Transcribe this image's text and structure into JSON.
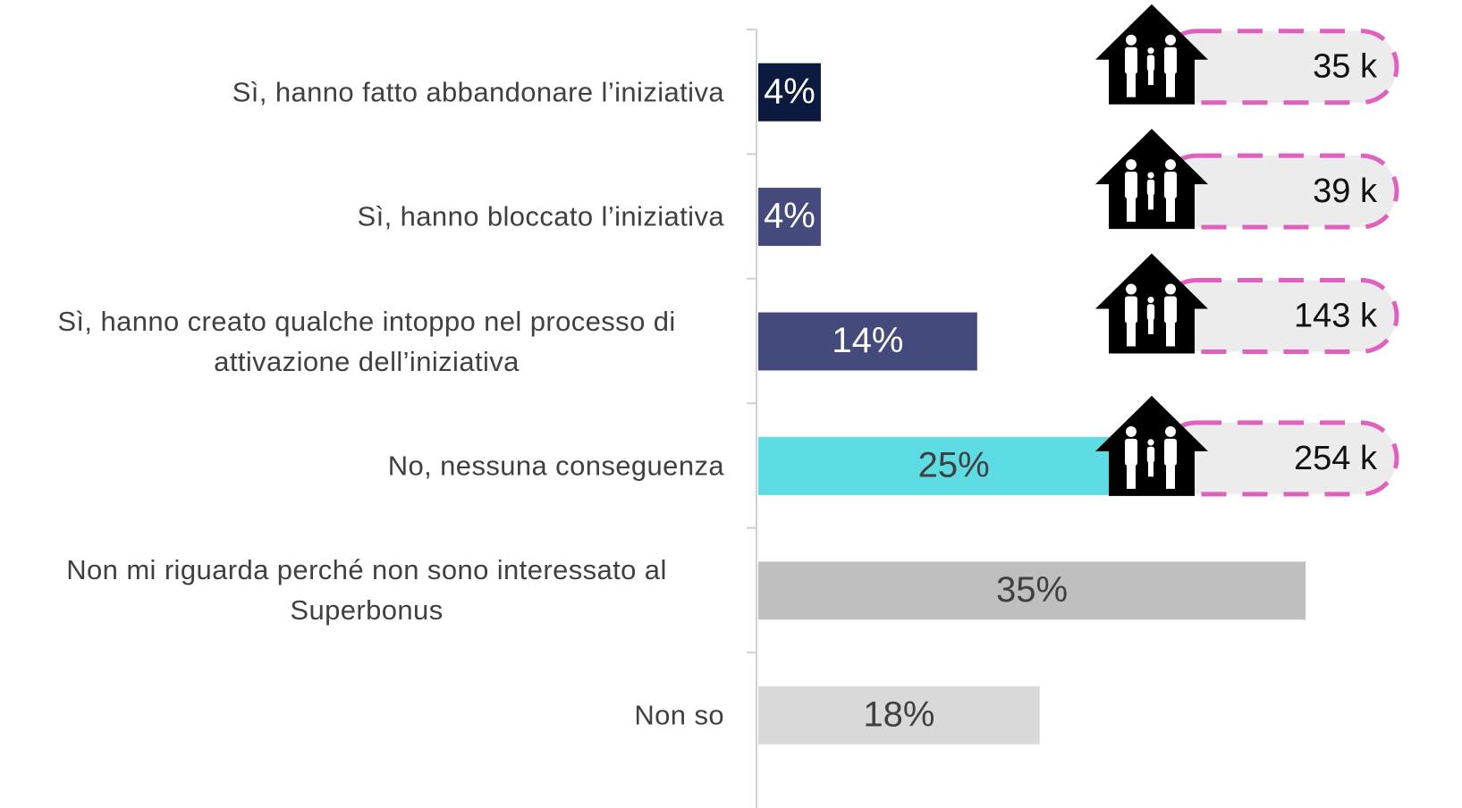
{
  "chart_data": {
    "type": "bar",
    "orientation": "horizontal",
    "categories": [
      "Sì, hanno fatto abbandonare l’iniziativa",
      "Sì, hanno bloccato l’iniziativa",
      "Sì, hanno creato qualche intoppo nel processo di attivazione dell’iniziativa",
      "No, nessuna conseguenza",
      "Non mi riguarda perché non sono interessato al Superbonus",
      "Non so"
    ],
    "values": [
      4,
      4,
      14,
      25,
      35,
      18
    ],
    "value_labels": [
      "4%",
      "4%",
      "14%",
      "25%",
      "35%",
      "18%"
    ],
    "colors": [
      "#0d1a3f",
      "#454a7c",
      "#454a7c",
      "#5ddce3",
      "#bfbfbf",
      "#d9d9d9"
    ],
    "label_colors": [
      "#ffffff",
      "#ffffff",
      "#ffffff",
      "#404040",
      "#404040",
      "#404040"
    ],
    "household_labels": [
      "35 k",
      "39 k",
      "143 k",
      "254 k"
    ],
    "xlim": [
      0,
      45
    ]
  }
}
